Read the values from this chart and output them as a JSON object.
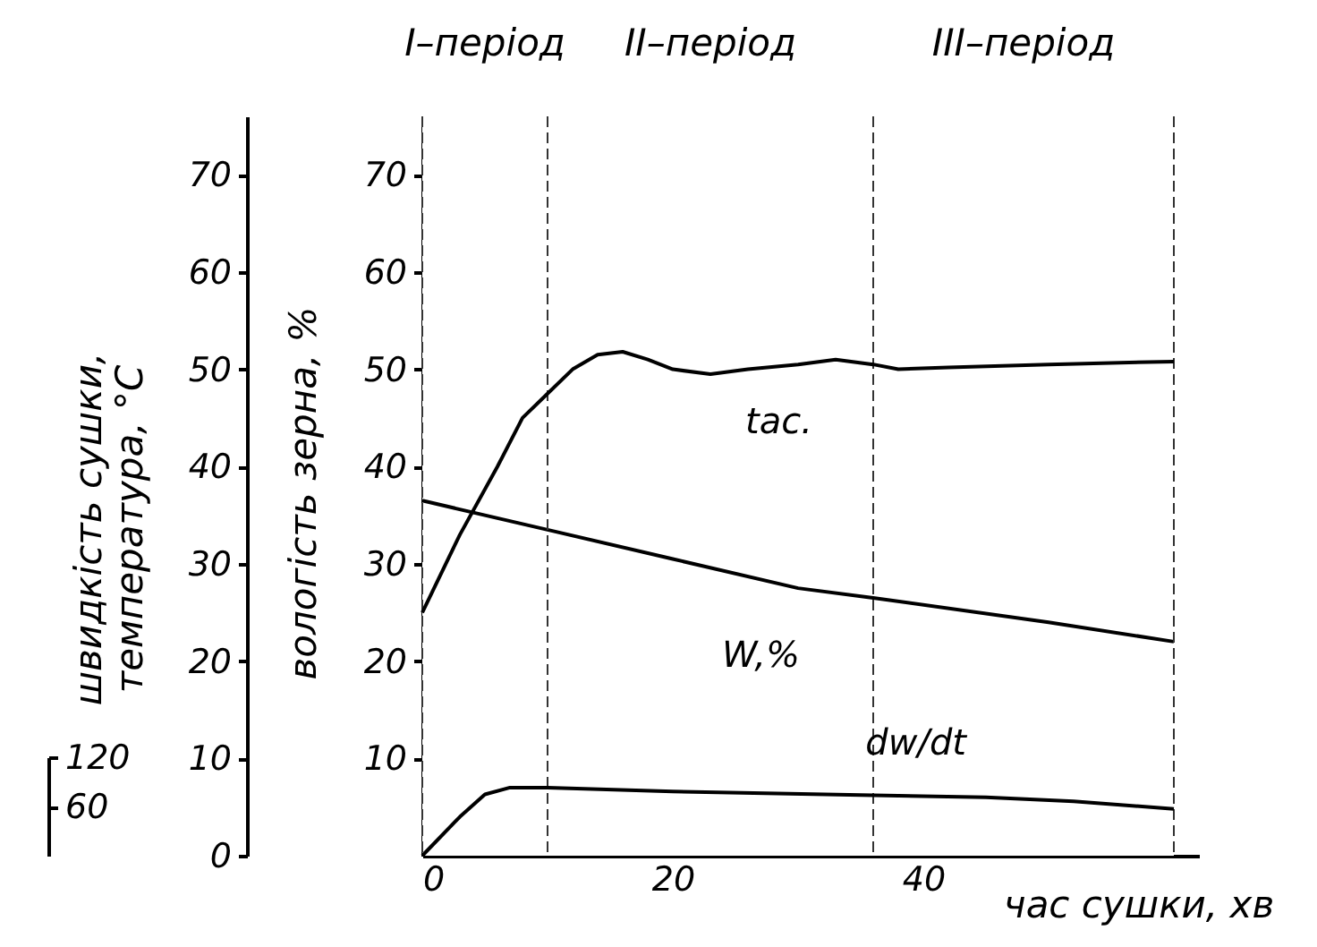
{
  "chart_data": {
    "type": "line",
    "xlabel": "час сушки, хв",
    "ylabel": "вологість зерна, %",
    "y2label": "швидкість сушки,\nтемпература, °C",
    "xlim": [
      0,
      62
    ],
    "xticks": [
      0,
      20,
      40
    ],
    "ylim": [
      0,
      76
    ],
    "yticks": [
      10,
      20,
      30,
      40,
      50,
      60,
      70
    ],
    "y2lim": [
      0,
      76
    ],
    "y2ticks": [
      0,
      10,
      20,
      30,
      40,
      50,
      60,
      70
    ],
    "y3lim": [
      0,
      120
    ],
    "y3ticks": [
      60,
      120
    ],
    "series": [
      {
        "color": "#000000",
        "axis": "y2",
        "x": [
          0,
          3,
          6,
          8,
          10,
          12,
          14,
          16,
          18,
          20,
          23,
          26,
          30,
          33,
          36,
          38,
          42,
          50,
          60
        ],
        "values": [
          25,
          33,
          40,
          45,
          47.5,
          50,
          51.5,
          51.8,
          51,
          50,
          49.5,
          50,
          50.5,
          51,
          50.5,
          50,
          50.2,
          50.5,
          50.8
        ]
      },
      {
        "color": "#000000",
        "axis": "y",
        "x": [
          0,
          10,
          20,
          30,
          36,
          50,
          60
        ],
        "values": [
          36.5,
          33.5,
          30.5,
          27.5,
          26.5,
          24,
          22
        ]
      },
      {
        "color": "#000000",
        "axis": "y2",
        "x": [
          0,
          3,
          5,
          7,
          10,
          20,
          36,
          45,
          52,
          60
        ],
        "values": [
          0,
          4,
          6.3,
          7,
          7,
          6.6,
          6.2,
          6,
          5.6,
          4.8
        ]
      }
    ],
    "bands": [
      {
        "axis": "x",
        "from": 0,
        "to": 10,
        "label": "I–період",
        "color": "#ffffff"
      },
      {
        "axis": "x",
        "from": 10,
        "to": 36,
        "label": "II–період",
        "color": "#ffffff"
      },
      {
        "axis": "x",
        "from": 36,
        "to": 60,
        "label": "III–період",
        "color": "#ffffff"
      }
    ],
    "annotations": [
      {
        "text": "tас.",
        "x": 34,
        "y": 51
      },
      {
        "text": "W,%",
        "x": 33,
        "y": 27
      },
      {
        "text": "dw/dt",
        "x": 42,
        "y": 6
      }
    ]
  }
}
